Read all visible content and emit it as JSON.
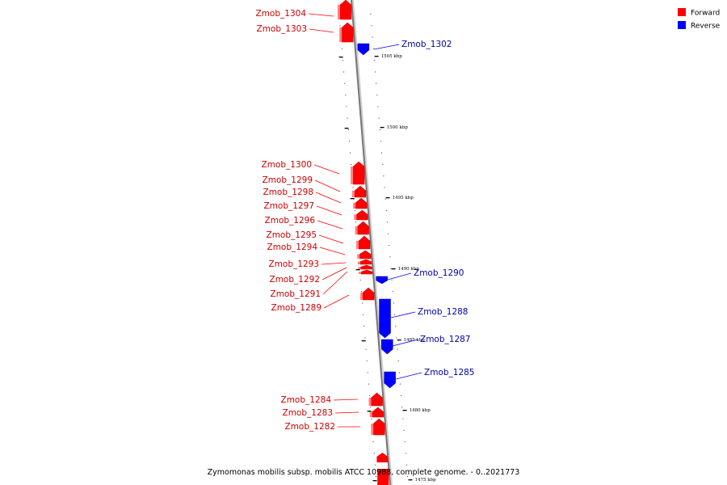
{
  "legend": {
    "forward": {
      "label": "Forward",
      "color": "#ff0000"
    },
    "reverse": {
      "label": "Reverse",
      "color": "#0000ff"
    }
  },
  "caption": "Zymomonas mobilis subsp. mobilis ATCC 10988, complete genome. - 0..2021773",
  "colors": {
    "forward": "#ff0000",
    "reverse": "#0000ff",
    "backbone": "#777777"
  },
  "ticks": [
    "1505 kbp",
    "1500 kbp",
    "1495 kbp",
    "1490 kbp",
    "1485 kbp",
    "1480 kbp",
    "1475 kbp"
  ],
  "forward_genes": [
    "Zmob_1304",
    "Zmob_1303",
    "Zmob_1300",
    "Zmob_1299",
    "Zmob_1298",
    "Zmob_1297",
    "Zmob_1296",
    "Zmob_1295",
    "Zmob_1294",
    "Zmob_1293",
    "Zmob_1292",
    "Zmob_1291",
    "Zmob_1289",
    "Zmob_1284",
    "Zmob_1283",
    "Zmob_1282"
  ],
  "reverse_genes": [
    "Zmob_1302",
    "Zmob_1290",
    "Zmob_1288",
    "Zmob_1287",
    "Zmob_1285"
  ]
}
